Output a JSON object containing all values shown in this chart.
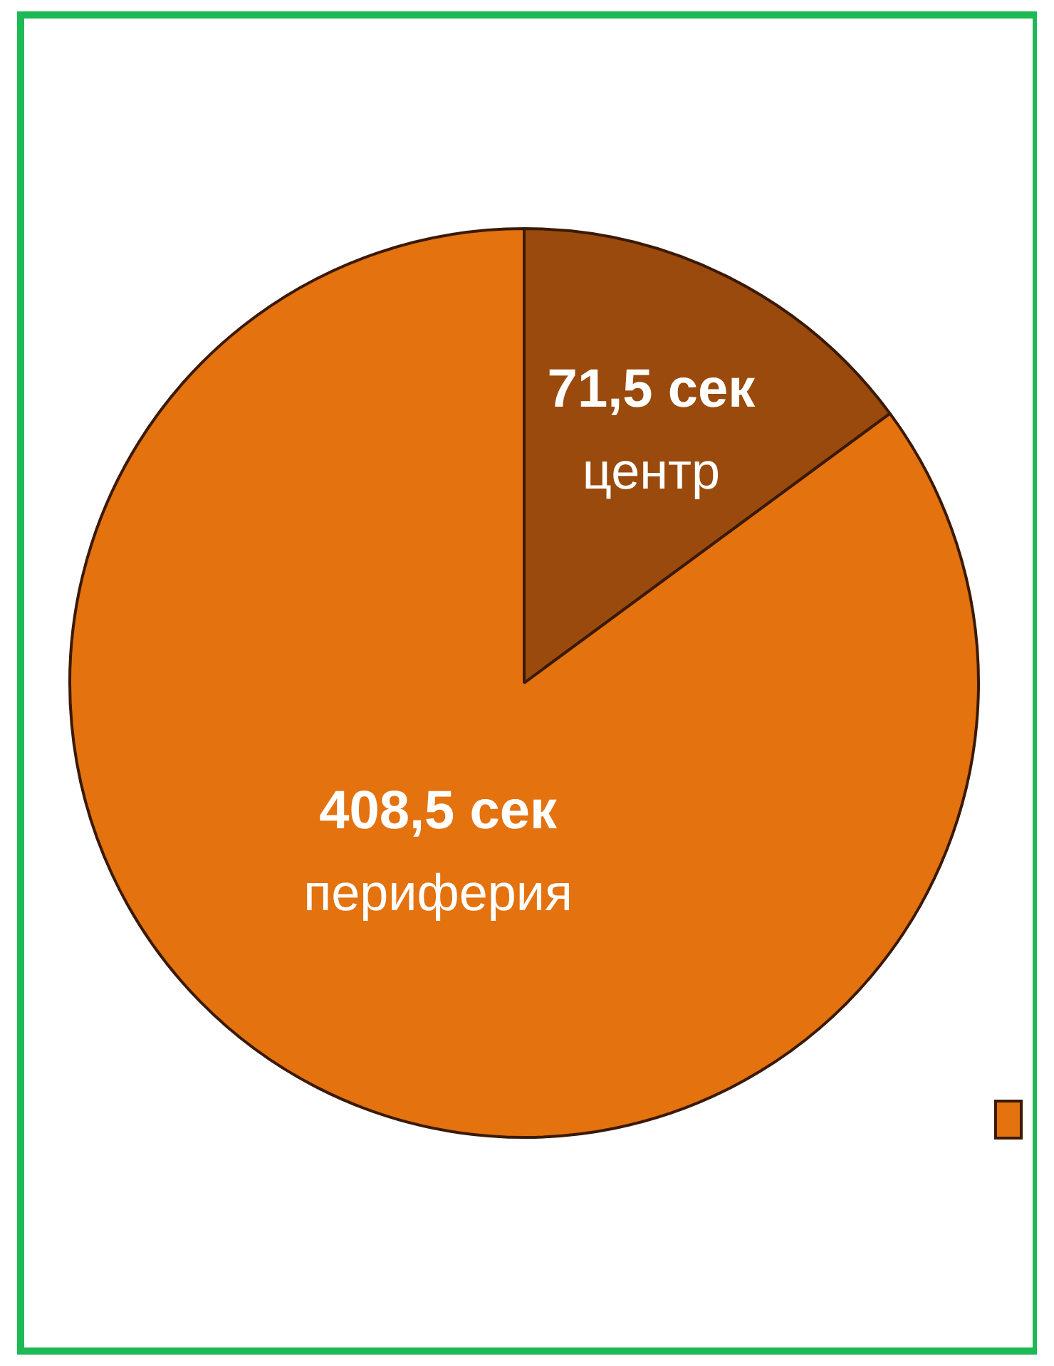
{
  "chart_data": {
    "type": "pie",
    "categories": [
      "центр",
      "периферия"
    ],
    "values": [
      71.5,
      408.5
    ],
    "colors": [
      "#9a4a0c",
      "#e3720f"
    ],
    "value_labels": [
      "71,5 сек",
      "408,5 сек"
    ],
    "legend": false
  }
}
